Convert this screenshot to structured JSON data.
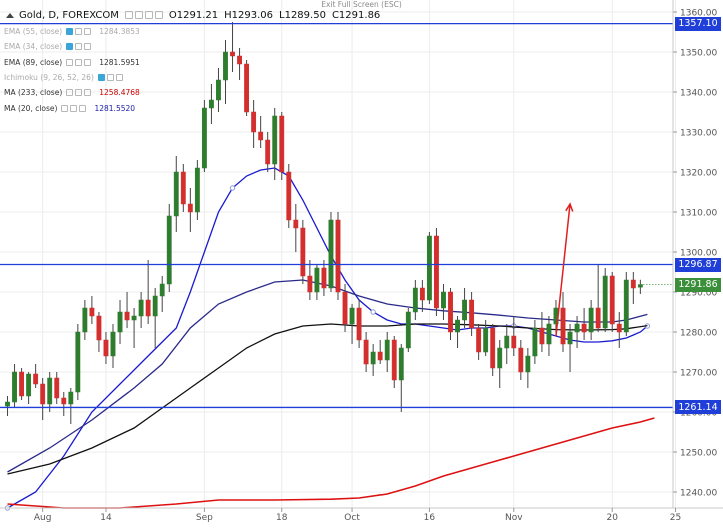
{
  "fullscreen_hint": "Exit Full Screen (ESC)",
  "header": {
    "title": "Gold, D, FOREXCOM",
    "open": "O1291.21",
    "high": "H1293.06",
    "low": "L1289.50",
    "close": "C1291.86"
  },
  "legend": [
    {
      "label": "EMA (55, close)",
      "value": "1284.3853",
      "faded": true
    },
    {
      "label": "EMA (34, close)",
      "value": "",
      "faded": true
    },
    {
      "label": "EMA (89, close)",
      "value": "1281.5951",
      "faded": false
    },
    {
      "label": "Ichimoku (9, 26, 52, 26)",
      "value": "",
      "faded": true
    },
    {
      "label": "MA (233, close)",
      "value": "1258.4768",
      "faded": false,
      "color": "#cc0000"
    },
    {
      "label": "MA (20, close)",
      "value": "1281.5520",
      "faded": false,
      "color": "#1a1aa6"
    }
  ],
  "price_tags": {
    "line_upper": "1357.10",
    "line_middle": "1296.87",
    "last_price": "1291.86",
    "line_lower": "1261.14"
  },
  "colors": {
    "up": "#2e7d2e",
    "down": "#d32f2f",
    "hline": "#1f3fd8",
    "ma20": "#1a1ad0",
    "ema55": "#2a2a8a",
    "ema89": "#111111",
    "ma233": "#dd1111",
    "arrow": "#e02020",
    "last_price": "#3b8f3b"
  },
  "chart_data": {
    "type": "candlestick",
    "symbol": "Gold, D, FOREXCOM",
    "timeframe": "D",
    "ylim": [
      1236,
      1363
    ],
    "y_ticks": [
      1240,
      1250,
      1260,
      1270,
      1280,
      1290,
      1300,
      1310,
      1320,
      1330,
      1340,
      1350,
      1360
    ],
    "x_ticks": [
      {
        "label": "Aug",
        "bar": 5
      },
      {
        "label": "14",
        "bar": 14
      },
      {
        "label": "Sep",
        "bar": 28
      },
      {
        "label": "18",
        "bar": 39
      },
      {
        "label": "Oct",
        "bar": 49
      },
      {
        "label": "16",
        "bar": 60
      },
      {
        "label": "Nov",
        "bar": 72
      },
      {
        "label": "20",
        "bar": 86
      },
      {
        "label": "25",
        "bar": 95
      }
    ],
    "candles": [
      {
        "o": 1261.5,
        "h": 1264.0,
        "l": 1259.0,
        "c": 1262.5
      },
      {
        "o": 1262.5,
        "h": 1272.0,
        "l": 1261.0,
        "c": 1270.0
      },
      {
        "o": 1270.0,
        "h": 1271.0,
        "l": 1263.0,
        "c": 1264.0
      },
      {
        "o": 1264.0,
        "h": 1270.0,
        "l": 1262.0,
        "c": 1269.5
      },
      {
        "o": 1269.5,
        "h": 1272.0,
        "l": 1266.0,
        "c": 1267.0
      },
      {
        "o": 1267.0,
        "h": 1268.5,
        "l": 1258.0,
        "c": 1262.0
      },
      {
        "o": 1262.0,
        "h": 1270.0,
        "l": 1260.0,
        "c": 1268.5
      },
      {
        "o": 1268.5,
        "h": 1270.0,
        "l": 1262.0,
        "c": 1263.5
      },
      {
        "o": 1263.5,
        "h": 1265.0,
        "l": 1259.0,
        "c": 1262.0
      },
      {
        "o": 1262.0,
        "h": 1266.0,
        "l": 1257.0,
        "c": 1265.0
      },
      {
        "o": 1265.0,
        "h": 1282.0,
        "l": 1263.0,
        "c": 1280.0
      },
      {
        "o": 1280.0,
        "h": 1288.0,
        "l": 1278.0,
        "c": 1286.0
      },
      {
        "o": 1286.0,
        "h": 1289.0,
        "l": 1282.0,
        "c": 1284.0
      },
      {
        "o": 1284.0,
        "h": 1285.0,
        "l": 1275.0,
        "c": 1278.0
      },
      {
        "o": 1278.0,
        "h": 1280.0,
        "l": 1272.0,
        "c": 1274.0
      },
      {
        "o": 1274.0,
        "h": 1282.0,
        "l": 1271.0,
        "c": 1280.0
      },
      {
        "o": 1280.0,
        "h": 1288.0,
        "l": 1277.0,
        "c": 1285.0
      },
      {
        "o": 1285.0,
        "h": 1290.0,
        "l": 1281.0,
        "c": 1283.0
      },
      {
        "o": 1283.0,
        "h": 1286.0,
        "l": 1276.0,
        "c": 1284.0
      },
      {
        "o": 1284.0,
        "h": 1290.0,
        "l": 1281.0,
        "c": 1288.0
      },
      {
        "o": 1288.0,
        "h": 1298.0,
        "l": 1282.0,
        "c": 1284.0
      },
      {
        "o": 1284.0,
        "h": 1291.0,
        "l": 1276.0,
        "c": 1289.0
      },
      {
        "o": 1289.0,
        "h": 1294.0,
        "l": 1285.0,
        "c": 1292.0
      },
      {
        "o": 1292.0,
        "h": 1312.0,
        "l": 1290.0,
        "c": 1309.0
      },
      {
        "o": 1309.0,
        "h": 1324.0,
        "l": 1305.0,
        "c": 1320.0
      },
      {
        "o": 1320.0,
        "h": 1322.0,
        "l": 1310.0,
        "c": 1312.0
      },
      {
        "o": 1312.0,
        "h": 1316.0,
        "l": 1305.0,
        "c": 1310.0
      },
      {
        "o": 1310.0,
        "h": 1323.0,
        "l": 1308.0,
        "c": 1321.0
      },
      {
        "o": 1321.0,
        "h": 1338.0,
        "l": 1320.0,
        "c": 1336.0
      },
      {
        "o": 1336.0,
        "h": 1342.0,
        "l": 1332.0,
        "c": 1338.0
      },
      {
        "o": 1338.0,
        "h": 1346.0,
        "l": 1335.0,
        "c": 1343.0
      },
      {
        "o": 1343.0,
        "h": 1353.0,
        "l": 1337.0,
        "c": 1350.0
      },
      {
        "o": 1350.0,
        "h": 1357.5,
        "l": 1345.0,
        "c": 1349.0
      },
      {
        "o": 1349.0,
        "h": 1351.0,
        "l": 1343.0,
        "c": 1347.0
      },
      {
        "o": 1347.0,
        "h": 1348.0,
        "l": 1334.0,
        "c": 1335.0
      },
      {
        "o": 1335.0,
        "h": 1338.0,
        "l": 1326.0,
        "c": 1330.0
      },
      {
        "o": 1330.0,
        "h": 1334.0,
        "l": 1326.0,
        "c": 1328.0
      },
      {
        "o": 1328.0,
        "h": 1330.0,
        "l": 1320.0,
        "c": 1322.0
      },
      {
        "o": 1322.0,
        "h": 1336.0,
        "l": 1318.0,
        "c": 1334.0
      },
      {
        "o": 1334.0,
        "h": 1335.0,
        "l": 1318.0,
        "c": 1320.0
      },
      {
        "o": 1320.0,
        "h": 1322.0,
        "l": 1306.0,
        "c": 1308.0
      },
      {
        "o": 1308.0,
        "h": 1312.0,
        "l": 1300.0,
        "c": 1306.0
      },
      {
        "o": 1306.0,
        "h": 1308.0,
        "l": 1292.0,
        "c": 1294.0
      },
      {
        "o": 1294.0,
        "h": 1298.0,
        "l": 1288.0,
        "c": 1290.0
      },
      {
        "o": 1290.0,
        "h": 1297.0,
        "l": 1288.0,
        "c": 1296.0
      },
      {
        "o": 1296.0,
        "h": 1298.0,
        "l": 1289.0,
        "c": 1291.0
      },
      {
        "o": 1291.0,
        "h": 1310.0,
        "l": 1290.0,
        "c": 1308.0
      },
      {
        "o": 1308.0,
        "h": 1310.0,
        "l": 1288.0,
        "c": 1290.0
      },
      {
        "o": 1290.0,
        "h": 1292.0,
        "l": 1280.0,
        "c": 1282.0
      },
      {
        "o": 1282.0,
        "h": 1287.0,
        "l": 1277.0,
        "c": 1286.0
      },
      {
        "o": 1286.0,
        "h": 1288.0,
        "l": 1276.0,
        "c": 1278.0
      },
      {
        "o": 1278.0,
        "h": 1280.0,
        "l": 1270.0,
        "c": 1272.0
      },
      {
        "o": 1272.0,
        "h": 1277.0,
        "l": 1269.0,
        "c": 1275.0
      },
      {
        "o": 1275.0,
        "h": 1278.0,
        "l": 1272.0,
        "c": 1273.0
      },
      {
        "o": 1273.0,
        "h": 1280.0,
        "l": 1270.0,
        "c": 1278.0
      },
      {
        "o": 1278.0,
        "h": 1279.0,
        "l": 1266.0,
        "c": 1268.0
      },
      {
        "o": 1268.0,
        "h": 1277.0,
        "l": 1260.0,
        "c": 1276.0
      },
      {
        "o": 1276.0,
        "h": 1286.0,
        "l": 1275.0,
        "c": 1285.0
      },
      {
        "o": 1285.0,
        "h": 1293.0,
        "l": 1283.0,
        "c": 1291.0
      },
      {
        "o": 1291.0,
        "h": 1293.0,
        "l": 1285.0,
        "c": 1288.0
      },
      {
        "o": 1288.0,
        "h": 1305.0,
        "l": 1287.0,
        "c": 1304.0
      },
      {
        "o": 1304.0,
        "h": 1306.0,
        "l": 1284.0,
        "c": 1286.0
      },
      {
        "o": 1286.0,
        "h": 1292.0,
        "l": 1283.0,
        "c": 1290.0
      },
      {
        "o": 1290.0,
        "h": 1291.0,
        "l": 1278.0,
        "c": 1280.0
      },
      {
        "o": 1280.0,
        "h": 1284.0,
        "l": 1276.0,
        "c": 1283.0
      },
      {
        "o": 1283.0,
        "h": 1291.0,
        "l": 1281.0,
        "c": 1288.0
      },
      {
        "o": 1288.0,
        "h": 1290.0,
        "l": 1279.0,
        "c": 1281.0
      },
      {
        "o": 1281.0,
        "h": 1282.0,
        "l": 1273.0,
        "c": 1275.0
      },
      {
        "o": 1275.0,
        "h": 1283.0,
        "l": 1274.0,
        "c": 1281.0
      },
      {
        "o": 1281.0,
        "h": 1282.0,
        "l": 1269.0,
        "c": 1271.0
      },
      {
        "o": 1271.0,
        "h": 1278.0,
        "l": 1266.0,
        "c": 1276.0
      },
      {
        "o": 1276.0,
        "h": 1282.0,
        "l": 1272.0,
        "c": 1279.0
      },
      {
        "o": 1279.0,
        "h": 1284.0,
        "l": 1274.0,
        "c": 1276.0
      },
      {
        "o": 1276.0,
        "h": 1278.0,
        "l": 1268.0,
        "c": 1270.0
      },
      {
        "o": 1270.0,
        "h": 1276.0,
        "l": 1266.0,
        "c": 1274.0
      },
      {
        "o": 1274.0,
        "h": 1283.0,
        "l": 1272.0,
        "c": 1281.0
      },
      {
        "o": 1281.0,
        "h": 1285.0,
        "l": 1275.0,
        "c": 1277.0
      },
      {
        "o": 1277.0,
        "h": 1284.0,
        "l": 1274.0,
        "c": 1282.0
      },
      {
        "o": 1282.0,
        "h": 1288.0,
        "l": 1279.0,
        "c": 1286.0
      },
      {
        "o": 1286.0,
        "h": 1290.0,
        "l": 1275.0,
        "c": 1277.0
      },
      {
        "o": 1277.0,
        "h": 1282.0,
        "l": 1270.0,
        "c": 1280.0
      },
      {
        "o": 1280.0,
        "h": 1284.0,
        "l": 1276.0,
        "c": 1282.0
      },
      {
        "o": 1282.0,
        "h": 1286.0,
        "l": 1278.0,
        "c": 1280.0
      },
      {
        "o": 1280.0,
        "h": 1288.0,
        "l": 1278.0,
        "c": 1286.0
      },
      {
        "o": 1286.0,
        "h": 1297.0,
        "l": 1280.0,
        "c": 1281.0
      },
      {
        "o": 1281.0,
        "h": 1296.0,
        "l": 1280.0,
        "c": 1294.0
      },
      {
        "o": 1294.0,
        "h": 1295.0,
        "l": 1280.0,
        "c": 1282.0
      },
      {
        "o": 1282.0,
        "h": 1285.0,
        "l": 1276.0,
        "c": 1280.0
      },
      {
        "o": 1280.0,
        "h": 1295.0,
        "l": 1279.0,
        "c": 1293.0
      },
      {
        "o": 1293.0,
        "h": 1295.0,
        "l": 1287.0,
        "c": 1291.0
      },
      {
        "o": 1291.21,
        "h": 1293.06,
        "l": 1289.5,
        "c": 1291.86
      }
    ],
    "indicators": [
      {
        "name": "MA (20, close)",
        "color": "#1a1ad0",
        "markers": true,
        "values": [
          [
            0,
            1236
          ],
          [
            4,
            1240
          ],
          [
            8,
            1249
          ],
          [
            12,
            1260
          ],
          [
            16,
            1267
          ],
          [
            20,
            1274
          ],
          [
            24,
            1281
          ],
          [
            26,
            1290
          ],
          [
            28,
            1300
          ],
          [
            30,
            1310
          ],
          [
            32,
            1316
          ],
          [
            34,
            1319
          ],
          [
            36,
            1320.5
          ],
          [
            38,
            1321
          ],
          [
            40,
            1319
          ],
          [
            42,
            1313
          ],
          [
            44,
            1306
          ],
          [
            46,
            1299
          ],
          [
            48,
            1293
          ],
          [
            50,
            1288
          ],
          [
            52,
            1285
          ],
          [
            54,
            1283
          ],
          [
            56,
            1282
          ],
          [
            58,
            1282
          ],
          [
            60,
            1281.5
          ],
          [
            62,
            1281
          ],
          [
            64,
            1280.5
          ],
          [
            66,
            1281
          ],
          [
            68,
            1281
          ],
          [
            70,
            1281.5
          ],
          [
            72,
            1281.5
          ],
          [
            74,
            1281
          ],
          [
            76,
            1280
          ],
          [
            78,
            1279
          ],
          [
            80,
            1278
          ],
          [
            82,
            1277.5
          ],
          [
            84,
            1277.5
          ],
          [
            86,
            1277.8
          ],
          [
            88,
            1278.5
          ],
          [
            90,
            1280
          ],
          [
            91,
            1281.5
          ]
        ]
      },
      {
        "name": "EMA (55, close)",
        "color": "#2a2a8a",
        "markers": false,
        "values": [
          [
            0,
            1245
          ],
          [
            6,
            1251
          ],
          [
            12,
            1258
          ],
          [
            18,
            1266
          ],
          [
            22,
            1272
          ],
          [
            26,
            1281
          ],
          [
            30,
            1287
          ],
          [
            34,
            1290
          ],
          [
            38,
            1292.5
          ],
          [
            42,
            1293
          ],
          [
            46,
            1291.5
          ],
          [
            50,
            1289
          ],
          [
            54,
            1287
          ],
          [
            58,
            1286
          ],
          [
            62,
            1285.3
          ],
          [
            66,
            1284.8
          ],
          [
            70,
            1284.2
          ],
          [
            74,
            1283.5
          ],
          [
            78,
            1283
          ],
          [
            82,
            1282.5
          ],
          [
            86,
            1282.5
          ],
          [
            88,
            1283
          ],
          [
            91,
            1284.4
          ]
        ]
      },
      {
        "name": "EMA (89, close)",
        "color": "#111111",
        "markers": false,
        "values": [
          [
            0,
            1244.5
          ],
          [
            6,
            1247
          ],
          [
            12,
            1251
          ],
          [
            18,
            1256
          ],
          [
            22,
            1261
          ],
          [
            26,
            1266
          ],
          [
            30,
            1271
          ],
          [
            34,
            1276
          ],
          [
            38,
            1279.5
          ],
          [
            42,
            1281.5
          ],
          [
            46,
            1282
          ],
          [
            50,
            1281.5
          ],
          [
            54,
            1281.5
          ],
          [
            58,
            1282
          ],
          [
            62,
            1282
          ],
          [
            66,
            1281.8
          ],
          [
            70,
            1281.5
          ],
          [
            74,
            1281
          ],
          [
            78,
            1280.6
          ],
          [
            82,
            1280.5
          ],
          [
            86,
            1280.6
          ],
          [
            88,
            1280.8
          ],
          [
            91,
            1281.6
          ]
        ]
      },
      {
        "name": "MA (233, close)",
        "color": "#dd1111",
        "markers": false,
        "values": [
          [
            0,
            1237
          ],
          [
            8,
            1236
          ],
          [
            16,
            1236
          ],
          [
            24,
            1237
          ],
          [
            30,
            1238
          ],
          [
            38,
            1238
          ],
          [
            46,
            1238.2
          ],
          [
            50,
            1238.5
          ],
          [
            54,
            1239.5
          ],
          [
            58,
            1241.5
          ],
          [
            62,
            1244
          ],
          [
            66,
            1246
          ],
          [
            70,
            1248
          ],
          [
            74,
            1250
          ],
          [
            78,
            1252
          ],
          [
            82,
            1254
          ],
          [
            86,
            1256
          ],
          [
            90,
            1257.5
          ],
          [
            92,
            1258.5
          ]
        ]
      }
    ],
    "hlines": [
      {
        "value": 1357.1,
        "label": "1357.10"
      },
      {
        "value": 1296.87,
        "label": "1296.87"
      },
      {
        "value": 1261.14,
        "label": "1261.14"
      }
    ],
    "arrow": {
      "from": [
        78,
        1279
      ],
      "to": [
        80,
        1312
      ]
    },
    "last_price": 1291.86,
    "grid": true
  }
}
